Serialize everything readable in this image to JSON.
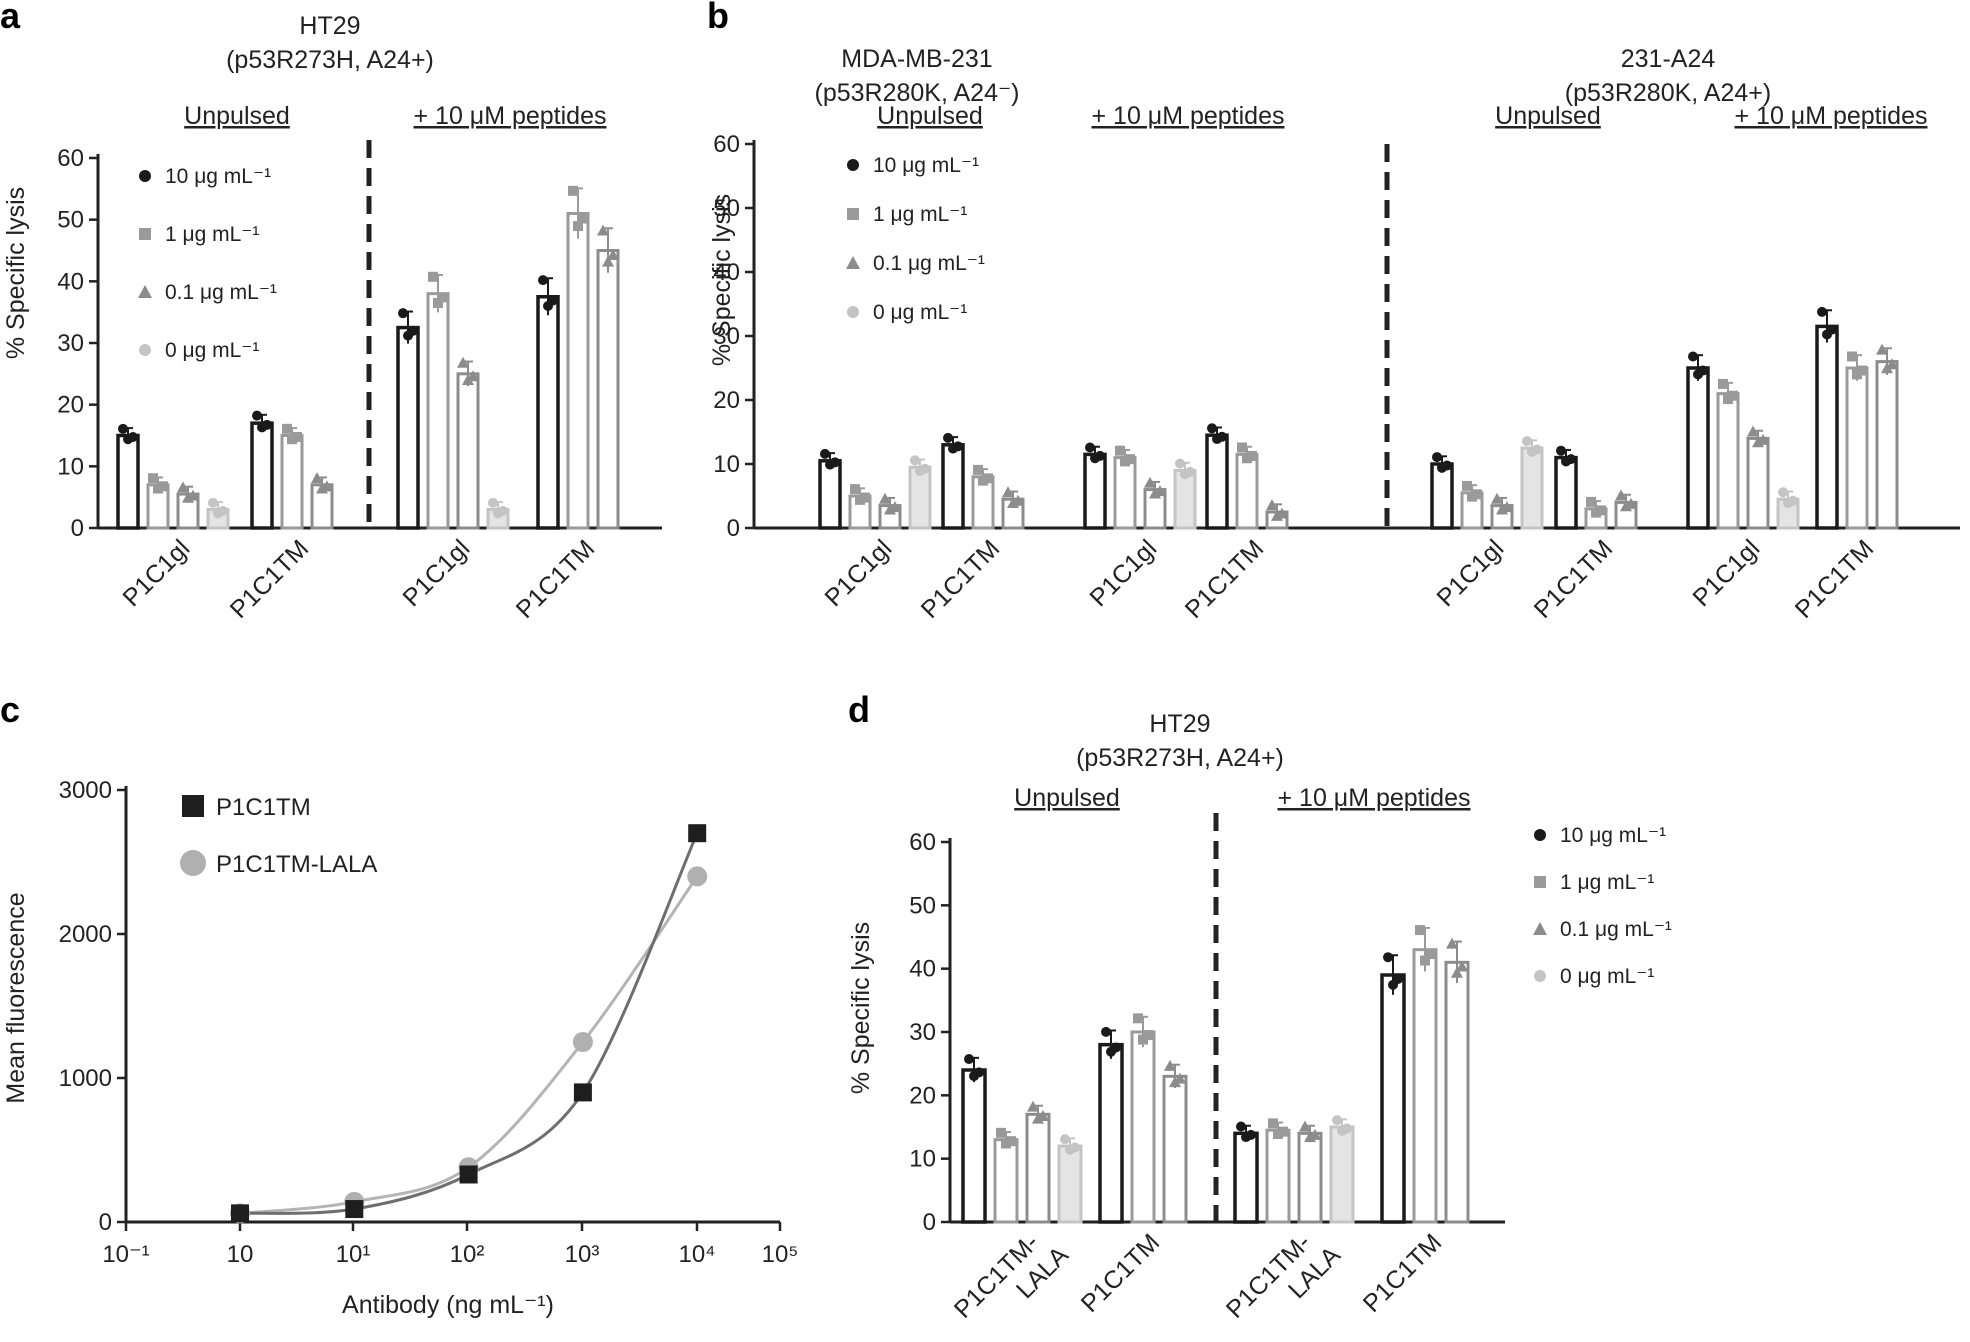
{
  "figure": {
    "panels": [
      "a",
      "b",
      "c",
      "d"
    ]
  },
  "legend_concentrations": {
    "labels": [
      "10 μg mL⁻¹",
      "1 μg mL⁻¹",
      "0.1 μg mL⁻¹",
      "0 μg mL⁻¹"
    ],
    "colors": [
      "#1a1a1a",
      "#9a9a9a",
      "#8c8c8c",
      "#c4c4c4"
    ],
    "marker_icons": [
      "circle-marker-icon",
      "square-marker-icon",
      "triangle-marker-icon",
      "circle-marker-icon"
    ]
  },
  "chart_data": [
    {
      "panel": "a",
      "type": "bar",
      "title": "HT29",
      "subtitle": "(p53R273H, A24+)",
      "ylabel": "% Specific lysis",
      "ylim": [
        0,
        60
      ],
      "yticks": [
        "0",
        "10",
        "20",
        "30",
        "40",
        "50",
        "60"
      ],
      "sections": [
        "Unpulsed",
        "+ 10 μM peptides"
      ],
      "categories": [
        "P1C1gl",
        "P1C1TM",
        "P1C1gl",
        "P1C1TM"
      ],
      "series": [
        {
          "name": "10 μg mL⁻¹",
          "values": [
            15,
            17,
            32.5,
            37.5
          ]
        },
        {
          "name": "1 μg mL⁻¹",
          "values": [
            7,
            15,
            38,
            51
          ]
        },
        {
          "name": "0.1 μg mL⁻¹",
          "values": [
            5.5,
            7,
            25,
            45
          ]
        },
        {
          "name": "0 μg mL⁻¹",
          "values": [
            3,
            null,
            3,
            null
          ]
        }
      ]
    },
    {
      "panel": "b",
      "type": "bar",
      "title_left": "MDA-MB-231",
      "subtitle_left": "(p53R280K, A24⁻)",
      "title_right": "231-A24",
      "subtitle_right": "(p53R280K, A24+)",
      "ylabel": "% Specific lysis",
      "ylim": [
        0,
        60
      ],
      "yticks": [
        "0",
        "10",
        "20",
        "30",
        "40",
        "50",
        "60"
      ],
      "sections": [
        "Unpulsed",
        "+ 10 μM peptides",
        "Unpulsed",
        "+ 10 μM peptides"
      ],
      "categories": [
        "P1C1gl",
        "P1C1TM",
        "P1C1gl",
        "P1C1TM",
        "P1C1gl",
        "P1C1TM",
        "P1C1gl",
        "P1C1TM"
      ],
      "series": [
        {
          "name": "10 μg mL⁻¹",
          "values": [
            10.5,
            13,
            11.5,
            14.5,
            10,
            11,
            25,
            31.5
          ]
        },
        {
          "name": "1 μg mL⁻¹",
          "values": [
            5,
            8,
            11,
            11.5,
            5.5,
            3,
            21,
            25
          ]
        },
        {
          "name": "0.1 μg mL⁻¹",
          "values": [
            3.5,
            4.5,
            6,
            2.5,
            3.5,
            4,
            14,
            26
          ]
        },
        {
          "name": "0 μg mL⁻¹",
          "values": [
            9.5,
            null,
            9,
            null,
            12.5,
            null,
            4.5,
            null
          ]
        }
      ]
    },
    {
      "panel": "c",
      "type": "line",
      "xlabel": "Antibody (ng mL⁻¹)",
      "ylabel": "Mean fluorescence",
      "xscale": "log",
      "xticks": [
        "10⁻¹",
        "10",
        "10¹",
        "10²",
        "10³",
        "10⁴",
        "10⁵"
      ],
      "yticks": [
        "0",
        "1000",
        "2000",
        "3000"
      ],
      "ylim": [
        0,
        3000
      ],
      "x": [
        1,
        10,
        100,
        1000,
        10000
      ],
      "series": [
        {
          "name": "P1C1TM",
          "marker": "square",
          "color": "#1e1e1e",
          "values": [
            60,
            90,
            330,
            900,
            2700
          ]
        },
        {
          "name": "P1C1TM-LALA",
          "marker": "circle",
          "color": "#b0b0b0",
          "values": [
            60,
            140,
            380,
            1250,
            2400
          ]
        }
      ]
    },
    {
      "panel": "d",
      "type": "bar",
      "title": "HT29",
      "subtitle": "(p53R273H, A24+)",
      "ylabel": "% Specific lysis",
      "ylim": [
        0,
        60
      ],
      "yticks": [
        "0",
        "10",
        "20",
        "30",
        "40",
        "50",
        "60"
      ],
      "sections": [
        "Unpulsed",
        "+ 10 μM peptides"
      ],
      "categories": [
        "P1C1TM-\nLALA",
        "P1C1TM",
        "P1C1TM-\nLALA",
        "P1C1TM"
      ],
      "series": [
        {
          "name": "10 μg mL⁻¹",
          "values": [
            24,
            28,
            14,
            39
          ]
        },
        {
          "name": "1 μg mL⁻¹",
          "values": [
            13,
            30,
            14.5,
            43
          ]
        },
        {
          "name": "0.1 μg mL⁻¹",
          "values": [
            17,
            23,
            14,
            41
          ]
        },
        {
          "name": "0 μg mL⁻¹",
          "values": [
            12,
            null,
            15,
            null
          ]
        }
      ]
    }
  ]
}
